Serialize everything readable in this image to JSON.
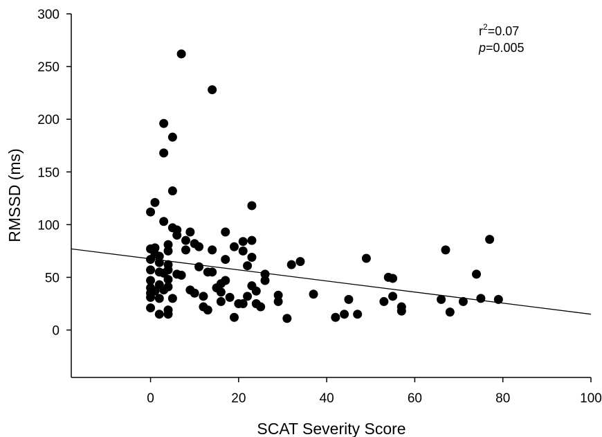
{
  "chart_data": {
    "type": "scatter",
    "xlabel": "SCAT Severity Score",
    "ylabel": "RMSSD (ms)",
    "xlim": [
      -18,
      100
    ],
    "ylim": [
      -45,
      300
    ],
    "xticks": [
      0,
      20,
      40,
      60,
      80,
      100
    ],
    "yticks": [
      0,
      50,
      100,
      150,
      200,
      250,
      300
    ],
    "xtick_labels": [
      "0",
      "20",
      "40",
      "60",
      "80",
      "100"
    ],
    "ytick_labels": [
      "0",
      "50",
      "100",
      "150",
      "200",
      "250",
      "300"
    ],
    "annotation": {
      "r_label": "r",
      "r_sup": "2",
      "r_value": "=0.07",
      "p_label": "p",
      "p_value": "=0.005"
    },
    "regression_line": {
      "x": [
        -18,
        100
      ],
      "y": [
        77,
        15
      ]
    },
    "grid": false,
    "legend": "none",
    "points": [
      [
        7,
        262
      ],
      [
        14,
        228
      ],
      [
        3,
        196
      ],
      [
        5,
        183
      ],
      [
        3,
        168
      ],
      [
        5,
        132
      ],
      [
        1,
        121
      ],
      [
        0,
        112
      ],
      [
        23,
        118
      ],
      [
        3,
        103
      ],
      [
        5,
        97
      ],
      [
        6,
        95
      ],
      [
        6,
        90
      ],
      [
        9,
        93
      ],
      [
        17,
        93
      ],
      [
        8,
        85
      ],
      [
        10,
        82
      ],
      [
        4,
        81
      ],
      [
        11,
        79
      ],
      [
        14,
        76
      ],
      [
        0,
        77
      ],
      [
        1,
        78
      ],
      [
        19,
        79
      ],
      [
        21,
        84
      ],
      [
        23,
        85
      ],
      [
        8,
        76
      ],
      [
        21,
        75
      ],
      [
        4,
        75
      ],
      [
        1,
        72
      ],
      [
        2,
        70
      ],
      [
        0,
        67
      ],
      [
        2,
        64
      ],
      [
        17,
        67
      ],
      [
        23,
        69
      ],
      [
        22,
        61
      ],
      [
        11,
        60
      ],
      [
        0,
        57
      ],
      [
        4,
        62
      ],
      [
        4,
        57
      ],
      [
        2,
        55
      ],
      [
        6,
        53
      ],
      [
        7,
        52
      ],
      [
        3,
        54
      ],
      [
        13,
        55
      ],
      [
        14,
        55
      ],
      [
        26,
        53
      ],
      [
        32,
        62
      ],
      [
        34,
        65
      ],
      [
        49,
        68
      ],
      [
        67,
        76
      ],
      [
        77,
        86
      ],
      [
        74,
        53
      ],
      [
        54,
        50
      ],
      [
        55,
        49
      ],
      [
        0,
        47
      ],
      [
        4,
        48
      ],
      [
        17,
        47
      ],
      [
        16,
        44
      ],
      [
        26,
        47
      ],
      [
        23,
        42
      ],
      [
        15,
        40
      ],
      [
        2,
        43
      ],
      [
        0,
        40
      ],
      [
        1,
        37
      ],
      [
        4,
        41
      ],
      [
        24,
        37
      ],
      [
        16,
        36
      ],
      [
        3,
        38
      ],
      [
        9,
        38
      ],
      [
        10,
        35
      ],
      [
        12,
        32
      ],
      [
        0,
        35
      ],
      [
        0,
        31
      ],
      [
        2,
        30
      ],
      [
        5,
        30
      ],
      [
        18,
        31
      ],
      [
        22,
        32
      ],
      [
        29,
        33
      ],
      [
        37,
        34
      ],
      [
        29,
        27
      ],
      [
        20,
        25
      ],
      [
        16,
        27
      ],
      [
        21,
        25
      ],
      [
        24,
        25
      ],
      [
        25,
        22
      ],
      [
        45,
        29
      ],
      [
        53,
        27
      ],
      [
        55,
        32
      ],
      [
        57,
        22
      ],
      [
        66,
        29
      ],
      [
        71,
        27
      ],
      [
        75,
        30
      ],
      [
        79,
        29
      ],
      [
        0,
        21
      ],
      [
        4,
        19
      ],
      [
        12,
        22
      ],
      [
        13,
        19
      ],
      [
        4,
        15
      ],
      [
        2,
        15
      ],
      [
        19,
        12
      ],
      [
        31,
        11
      ],
      [
        42,
        12
      ],
      [
        44,
        15
      ],
      [
        47,
        15
      ],
      [
        57,
        18
      ],
      [
        68,
        17
      ]
    ]
  }
}
